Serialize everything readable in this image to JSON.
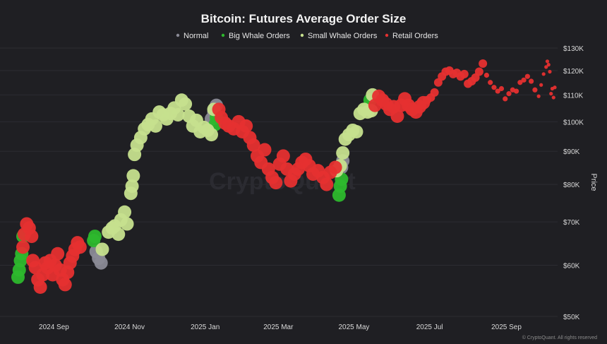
{
  "chart_data": {
    "type": "scatter",
    "title": "Bitcoin: Futures Average Order Size",
    "ylabel": "Price",
    "y_scale": "log",
    "ylim": [
      50000,
      130000
    ],
    "y_ticks": [
      50000,
      60000,
      70000,
      80000,
      90000,
      100000,
      110000,
      120000,
      130000
    ],
    "y_tick_labels": [
      "$50K",
      "$60K",
      "$70K",
      "$80K",
      "$90K",
      "$100K",
      "$110K",
      "$120K",
      "$130K"
    ],
    "xlim": [
      "2024-08-01",
      "2025-10-10"
    ],
    "x_ticks": [
      "2024-09-01",
      "2024-11-01",
      "2025-01-01",
      "2025-03-01",
      "2025-05-01",
      "2025-07-01",
      "2025-09-01"
    ],
    "x_tick_labels": [
      "2024 Sep",
      "2024 Nov",
      "2025 Jan",
      "2025 Mar",
      "2025 May",
      "2025 Jul",
      "2025 Sep"
    ],
    "legend_position": "top",
    "grid": "horizontal",
    "watermark": "CryptoQuant",
    "credit": "© CryptoQuant. All rights reserved",
    "series": [
      {
        "name": "Normal",
        "color": "#8a8a96",
        "points": [
          [
            "2024-10-05",
            63000
          ],
          [
            "2024-10-07",
            61500
          ],
          [
            "2024-10-09",
            60500
          ],
          [
            "2025-01-06",
            101000
          ],
          [
            "2025-01-08",
            103500
          ],
          [
            "2025-01-10",
            106000
          ],
          [
            "2025-04-21",
            85000
          ],
          [
            "2025-04-22",
            87000
          ]
        ]
      },
      {
        "name": "Big Whale Orders",
        "color": "#2db82d",
        "points": [
          [
            "2024-08-03",
            57500
          ],
          [
            "2024-08-04",
            59000
          ],
          [
            "2024-08-05",
            61000
          ],
          [
            "2024-08-06",
            62500
          ],
          [
            "2024-08-07",
            66500
          ],
          [
            "2024-10-03",
            65500
          ],
          [
            "2024-10-04",
            66500
          ],
          [
            "2025-01-09",
            99000
          ],
          [
            "2025-01-10",
            101500
          ],
          [
            "2025-04-19",
            77000
          ],
          [
            "2025-04-20",
            79500
          ],
          [
            "2025-04-21",
            81500
          ],
          [
            "2025-05-12",
            105000
          ],
          [
            "2025-05-14",
            108000
          ]
        ]
      },
      {
        "name": "Small Whale Orders",
        "color": "#c6e08e",
        "points": [
          [
            "2024-10-10",
            63500
          ],
          [
            "2024-10-15",
            67500
          ],
          [
            "2024-10-18",
            68500
          ],
          [
            "2024-10-20",
            69000
          ],
          [
            "2024-10-23",
            67000
          ],
          [
            "2024-10-25",
            70500
          ],
          [
            "2024-10-28",
            72500
          ],
          [
            "2024-10-30",
            69500
          ],
          [
            "2024-11-02",
            77500
          ],
          [
            "2024-11-03",
            79500
          ],
          [
            "2024-11-04",
            82500
          ],
          [
            "2024-11-05",
            89000
          ],
          [
            "2024-11-07",
            92000
          ],
          [
            "2024-11-10",
            94500
          ],
          [
            "2024-11-13",
            97500
          ],
          [
            "2024-11-16",
            99000
          ],
          [
            "2024-11-19",
            101000
          ],
          [
            "2024-11-22",
            98500
          ],
          [
            "2024-11-25",
            103500
          ],
          [
            "2024-11-28",
            102500
          ],
          [
            "2024-12-01",
            101000
          ],
          [
            "2024-12-04",
            103000
          ],
          [
            "2024-12-07",
            105000
          ],
          [
            "2024-12-10",
            102500
          ],
          [
            "2024-12-13",
            108000
          ],
          [
            "2024-12-16",
            106500
          ],
          [
            "2024-12-19",
            102000
          ],
          [
            "2024-12-22",
            98500
          ],
          [
            "2024-12-25",
            100500
          ],
          [
            "2024-12-28",
            96500
          ],
          [
            "2024-12-31",
            98000
          ],
          [
            "2025-01-03",
            97000
          ],
          [
            "2025-01-06",
            95500
          ],
          [
            "2025-01-08",
            104500
          ],
          [
            "2025-04-17",
            84000
          ],
          [
            "2025-04-20",
            85500
          ],
          [
            "2025-04-22",
            89500
          ],
          [
            "2025-04-24",
            94000
          ],
          [
            "2025-04-27",
            95500
          ],
          [
            "2025-04-30",
            97000
          ],
          [
            "2025-05-03",
            96500
          ],
          [
            "2025-05-06",
            103000
          ],
          [
            "2025-05-09",
            104500
          ],
          [
            "2025-05-12",
            103500
          ],
          [
            "2025-05-15",
            104000
          ],
          [
            "2025-05-16",
            110000
          ]
        ]
      },
      {
        "name": "Retail Orders",
        "color": "#e63030",
        "points": [
          [
            "2024-08-07",
            64000
          ],
          [
            "2024-08-08",
            67000
          ],
          [
            "2024-08-10",
            69500
          ],
          [
            "2024-08-12",
            68500
          ],
          [
            "2024-08-14",
            66500
          ],
          [
            "2024-08-15",
            61000
          ],
          [
            "2024-08-17",
            59500
          ],
          [
            "2024-08-19",
            57000
          ],
          [
            "2024-08-21",
            55500
          ],
          [
            "2024-08-23",
            58000
          ],
          [
            "2024-08-25",
            60500
          ],
          [
            "2024-08-27",
            59500
          ],
          [
            "2024-08-29",
            61000
          ],
          [
            "2024-08-31",
            58000
          ],
          [
            "2024-09-02",
            60000
          ],
          [
            "2024-09-04",
            62500
          ],
          [
            "2024-09-06",
            59000
          ],
          [
            "2024-09-08",
            57000
          ],
          [
            "2024-09-10",
            56000
          ],
          [
            "2024-09-12",
            58500
          ],
          [
            "2024-09-14",
            60500
          ],
          [
            "2024-09-16",
            62000
          ],
          [
            "2024-09-18",
            63500
          ],
          [
            "2024-09-20",
            65000
          ],
          [
            "2024-09-22",
            64000
          ],
          [
            "2025-01-12",
            104500
          ],
          [
            "2025-01-14",
            101500
          ],
          [
            "2025-01-17",
            99500
          ],
          [
            "2025-01-20",
            98500
          ],
          [
            "2025-01-24",
            97500
          ],
          [
            "2025-01-28",
            100000
          ],
          [
            "2025-01-31",
            96500
          ],
          [
            "2025-02-03",
            98500
          ],
          [
            "2025-02-06",
            94500
          ],
          [
            "2025-02-09",
            92000
          ],
          [
            "2025-02-12",
            88500
          ],
          [
            "2025-02-15",
            86500
          ],
          [
            "2025-02-18",
            90500
          ],
          [
            "2025-02-21",
            84500
          ],
          [
            "2025-02-24",
            82000
          ],
          [
            "2025-02-27",
            80500
          ],
          [
            "2025-03-02",
            86000
          ],
          [
            "2025-03-05",
            88500
          ],
          [
            "2025-03-08",
            84500
          ],
          [
            "2025-03-11",
            81000
          ],
          [
            "2025-03-14",
            83000
          ],
          [
            "2025-03-17",
            84500
          ],
          [
            "2025-03-20",
            86500
          ],
          [
            "2025-03-23",
            87500
          ],
          [
            "2025-03-26",
            85500
          ],
          [
            "2025-03-29",
            83000
          ],
          [
            "2025-04-02",
            84000
          ],
          [
            "2025-04-06",
            82000
          ],
          [
            "2025-04-09",
            80000
          ],
          [
            "2025-04-12",
            83500
          ],
          [
            "2025-04-16",
            85000
          ],
          [
            "2025-05-18",
            106000
          ],
          [
            "2025-05-21",
            109500
          ],
          [
            "2025-05-24",
            108000
          ],
          [
            "2025-05-27",
            106500
          ],
          [
            "2025-05-30",
            104500
          ],
          [
            "2025-06-02",
            105500
          ],
          [
            "2025-06-05",
            102000
          ],
          [
            "2025-06-08",
            106000
          ],
          [
            "2025-06-11",
            108500
          ],
          [
            "2025-06-14",
            106000
          ],
          [
            "2025-06-17",
            104500
          ],
          [
            "2025-06-20",
            103500
          ],
          [
            "2025-06-23",
            105500
          ],
          [
            "2025-06-26",
            107000
          ],
          [
            "2025-06-29",
            108000
          ],
          [
            "2025-07-02",
            109000
          ],
          [
            "2025-07-05",
            111000
          ],
          [
            "2025-07-08",
            115000
          ],
          [
            "2025-07-11",
            117500
          ],
          [
            "2025-07-14",
            119500
          ],
          [
            "2025-07-17",
            120000
          ],
          [
            "2025-07-20",
            118500
          ],
          [
            "2025-07-23",
            119000
          ],
          [
            "2025-07-26",
            117500
          ],
          [
            "2025-07-29",
            118500
          ],
          [
            "2025-08-01",
            114500
          ],
          [
            "2025-08-04",
            115500
          ],
          [
            "2025-08-07",
            117000
          ],
          [
            "2025-08-10",
            119500
          ],
          [
            "2025-08-13",
            123000
          ],
          [
            "2025-08-16",
            118000
          ],
          [
            "2025-08-19",
            115000
          ],
          [
            "2025-08-22",
            113000
          ],
          [
            "2025-08-25",
            111500
          ],
          [
            "2025-08-28",
            112500
          ],
          [
            "2025-08-31",
            108500
          ],
          [
            "2025-09-03",
            110500
          ],
          [
            "2025-09-06",
            112000
          ],
          [
            "2025-09-09",
            111500
          ],
          [
            "2025-09-12",
            115000
          ],
          [
            "2025-09-15",
            116000
          ],
          [
            "2025-09-18",
            117500
          ],
          [
            "2025-09-21",
            115500
          ],
          [
            "2025-09-24",
            112000
          ],
          [
            "2025-09-27",
            109500
          ],
          [
            "2025-09-29",
            114000
          ],
          [
            "2025-10-01",
            118500
          ],
          [
            "2025-10-03",
            121500
          ],
          [
            "2025-10-04",
            124000
          ],
          [
            "2025-10-05",
            122500
          ],
          [
            "2025-10-06",
            119500
          ],
          [
            "2025-10-07",
            110500
          ],
          [
            "2025-10-08",
            112500
          ],
          [
            "2025-10-09",
            109000
          ],
          [
            "2025-10-10",
            113000
          ]
        ]
      }
    ]
  }
}
